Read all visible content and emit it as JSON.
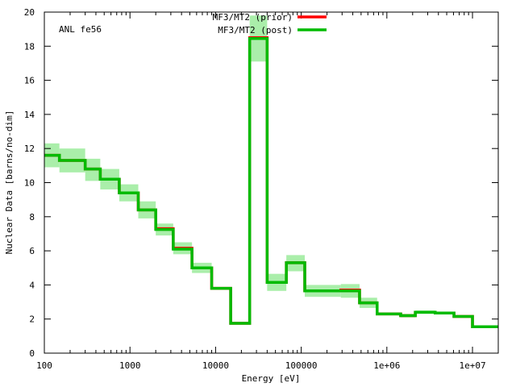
{
  "chart_data": {
    "type": "line",
    "step": true,
    "annotation": "ANL fe56",
    "xlabel": "Energy [eV]",
    "ylabel": "Nuclear Data [barns/no-dim]",
    "xscale": "log",
    "xlim": [
      100,
      20000000
    ],
    "ylim": [
      0,
      20
    ],
    "grid": false,
    "legend_position": "top-center",
    "x_ticks": [
      {
        "value": 100,
        "label": "100"
      },
      {
        "value": 1000,
        "label": "1000"
      },
      {
        "value": 10000,
        "label": "10000"
      },
      {
        "value": 100000,
        "label": "100000"
      },
      {
        "value": 1000000,
        "label": "1e+06"
      },
      {
        "value": 10000000,
        "label": "1e+07"
      }
    ],
    "y_ticks": [
      {
        "value": 0,
        "label": "0"
      },
      {
        "value": 2,
        "label": "2"
      },
      {
        "value": 4,
        "label": "4"
      },
      {
        "value": 6,
        "label": "6"
      },
      {
        "value": 8,
        "label": "8"
      },
      {
        "value": 10,
        "label": "10"
      },
      {
        "value": 12,
        "label": "12"
      },
      {
        "value": 14,
        "label": "14"
      },
      {
        "value": 16,
        "label": "16"
      },
      {
        "value": 18,
        "label": "18"
      },
      {
        "value": 20,
        "label": "20"
      }
    ],
    "bin_edges": [
      100,
      150,
      300,
      450,
      750,
      1250,
      2000,
      3200,
      5300,
      9000,
      15000,
      25000,
      40000,
      67000,
      110000,
      290000,
      480000,
      770000,
      1450000,
      2150000,
      3670000,
      6080000,
      10000000,
      20000000
    ],
    "series": [
      {
        "name": "MF3/MT2 (prior)",
        "color": "#ff0000",
        "values": [
          11.6,
          11.3,
          10.8,
          10.2,
          9.4,
          8.4,
          7.3,
          6.15,
          5.0,
          3.8,
          1.75,
          18.5,
          4.15,
          5.3,
          3.65,
          3.7,
          2.95,
          2.3,
          2.2,
          2.4,
          2.35,
          2.15,
          1.55
        ]
      },
      {
        "name": "MF3/MT2 (post)",
        "color": "#00bb00",
        "values": [
          11.6,
          11.3,
          10.8,
          10.2,
          9.4,
          8.4,
          7.25,
          6.1,
          5.0,
          3.8,
          1.75,
          18.45,
          4.15,
          5.3,
          3.65,
          3.65,
          2.95,
          2.3,
          2.2,
          2.4,
          2.35,
          2.15,
          1.55
        ]
      }
    ],
    "uncertainty_band": {
      "color": "#aaeeaa",
      "lower": [
        10.9,
        10.6,
        10.1,
        9.6,
        8.9,
        7.9,
        6.9,
        5.8,
        4.7,
        3.75,
        1.75,
        17.1,
        3.65,
        4.8,
        3.3,
        3.25,
        2.65,
        2.25,
        2.1,
        2.3,
        2.3,
        2.1,
        1.5
      ],
      "upper": [
        12.3,
        12.0,
        11.4,
        10.8,
        9.9,
        8.9,
        7.6,
        6.5,
        5.3,
        3.85,
        1.8,
        19.8,
        4.65,
        5.75,
        4.0,
        4.05,
        3.25,
        2.35,
        2.3,
        2.5,
        2.4,
        2.2,
        1.6
      ]
    }
  }
}
